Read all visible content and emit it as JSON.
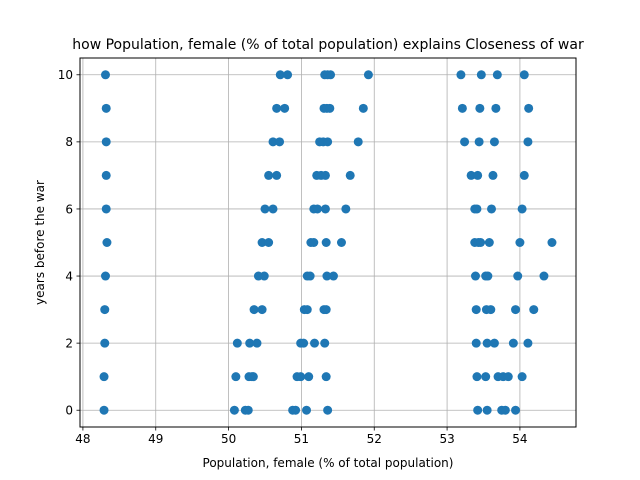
{
  "chart_data": {
    "type": "scatter",
    "title": "how Population, female (% of total population) explains Closeness of war",
    "xlabel": "Population, female (% of total population)",
    "ylabel": "years before the war",
    "xlim": [
      47.96,
      54.77
    ],
    "ylim": [
      -0.5,
      10.5
    ],
    "xticks": [
      48,
      49,
      50,
      51,
      52,
      53,
      54
    ],
    "yticks": [
      0,
      2,
      4,
      6,
      8,
      10
    ],
    "xtick_labels": [
      "48",
      "49",
      "50",
      "51",
      "52",
      "53",
      "54"
    ],
    "ytick_labels": [
      "0",
      "2",
      "4",
      "6",
      "8",
      "10"
    ],
    "grid": true,
    "marker_color": "#1f77b4",
    "points": [
      {
        "x": 48.31,
        "y": 10
      },
      {
        "x": 48.32,
        "y": 9
      },
      {
        "x": 48.32,
        "y": 8
      },
      {
        "x": 48.32,
        "y": 7
      },
      {
        "x": 48.32,
        "y": 6
      },
      {
        "x": 48.33,
        "y": 5
      },
      {
        "x": 48.31,
        "y": 4
      },
      {
        "x": 48.3,
        "y": 3
      },
      {
        "x": 48.3,
        "y": 2
      },
      {
        "x": 48.29,
        "y": 1
      },
      {
        "x": 48.29,
        "y": 0
      },
      {
        "x": 50.08,
        "y": 0
      },
      {
        "x": 50.23,
        "y": 0
      },
      {
        "x": 50.27,
        "y": 0
      },
      {
        "x": 50.1,
        "y": 1
      },
      {
        "x": 50.28,
        "y": 1
      },
      {
        "x": 50.32,
        "y": 1
      },
      {
        "x": 50.34,
        "y": 1
      },
      {
        "x": 50.12,
        "y": 2
      },
      {
        "x": 50.29,
        "y": 2
      },
      {
        "x": 50.39,
        "y": 2
      },
      {
        "x": 50.35,
        "y": 3
      },
      {
        "x": 50.46,
        "y": 3
      },
      {
        "x": 50.41,
        "y": 4
      },
      {
        "x": 50.49,
        "y": 4
      },
      {
        "x": 50.46,
        "y": 5
      },
      {
        "x": 50.55,
        "y": 5
      },
      {
        "x": 50.5,
        "y": 6
      },
      {
        "x": 50.61,
        "y": 6
      },
      {
        "x": 50.55,
        "y": 7
      },
      {
        "x": 50.66,
        "y": 7
      },
      {
        "x": 50.61,
        "y": 8
      },
      {
        "x": 50.7,
        "y": 8
      },
      {
        "x": 50.66,
        "y": 9
      },
      {
        "x": 50.77,
        "y": 9
      },
      {
        "x": 50.71,
        "y": 10
      },
      {
        "x": 50.81,
        "y": 10
      },
      {
        "x": 50.88,
        "y": 0
      },
      {
        "x": 50.92,
        "y": 0
      },
      {
        "x": 51.07,
        "y": 0
      },
      {
        "x": 51.36,
        "y": 0
      },
      {
        "x": 50.94,
        "y": 1
      },
      {
        "x": 50.99,
        "y": 1
      },
      {
        "x": 51.1,
        "y": 1
      },
      {
        "x": 51.34,
        "y": 1
      },
      {
        "x": 50.99,
        "y": 2
      },
      {
        "x": 51.03,
        "y": 2
      },
      {
        "x": 51.18,
        "y": 2
      },
      {
        "x": 51.32,
        "y": 2
      },
      {
        "x": 51.04,
        "y": 3
      },
      {
        "x": 51.08,
        "y": 3
      },
      {
        "x": 51.31,
        "y": 3
      },
      {
        "x": 51.34,
        "y": 3
      },
      {
        "x": 51.08,
        "y": 4
      },
      {
        "x": 51.12,
        "y": 4
      },
      {
        "x": 51.35,
        "y": 4
      },
      {
        "x": 51.44,
        "y": 4
      },
      {
        "x": 51.13,
        "y": 5
      },
      {
        "x": 51.17,
        "y": 5
      },
      {
        "x": 51.34,
        "y": 5
      },
      {
        "x": 51.55,
        "y": 5
      },
      {
        "x": 51.17,
        "y": 6
      },
      {
        "x": 51.22,
        "y": 6
      },
      {
        "x": 51.33,
        "y": 6
      },
      {
        "x": 51.61,
        "y": 6
      },
      {
        "x": 51.21,
        "y": 7
      },
      {
        "x": 51.27,
        "y": 7
      },
      {
        "x": 51.33,
        "y": 7
      },
      {
        "x": 51.67,
        "y": 7
      },
      {
        "x": 51.25,
        "y": 8
      },
      {
        "x": 51.3,
        "y": 8
      },
      {
        "x": 51.36,
        "y": 8
      },
      {
        "x": 51.78,
        "y": 8
      },
      {
        "x": 51.31,
        "y": 9
      },
      {
        "x": 51.35,
        "y": 9
      },
      {
        "x": 51.39,
        "y": 9
      },
      {
        "x": 51.85,
        "y": 9
      },
      {
        "x": 51.32,
        "y": 10
      },
      {
        "x": 51.36,
        "y": 10
      },
      {
        "x": 51.4,
        "y": 10
      },
      {
        "x": 51.92,
        "y": 10
      },
      {
        "x": 53.19,
        "y": 10
      },
      {
        "x": 53.47,
        "y": 10
      },
      {
        "x": 53.69,
        "y": 10
      },
      {
        "x": 54.06,
        "y": 10
      },
      {
        "x": 53.21,
        "y": 9
      },
      {
        "x": 53.45,
        "y": 9
      },
      {
        "x": 53.67,
        "y": 9
      },
      {
        "x": 54.12,
        "y": 9
      },
      {
        "x": 53.24,
        "y": 8
      },
      {
        "x": 53.44,
        "y": 8
      },
      {
        "x": 53.65,
        "y": 8
      },
      {
        "x": 54.11,
        "y": 8
      },
      {
        "x": 53.33,
        "y": 7
      },
      {
        "x": 53.42,
        "y": 7
      },
      {
        "x": 53.63,
        "y": 7
      },
      {
        "x": 54.06,
        "y": 7
      },
      {
        "x": 53.38,
        "y": 6
      },
      {
        "x": 53.41,
        "y": 6
      },
      {
        "x": 53.61,
        "y": 6
      },
      {
        "x": 54.03,
        "y": 6
      },
      {
        "x": 53.38,
        "y": 5
      },
      {
        "x": 53.43,
        "y": 5
      },
      {
        "x": 53.46,
        "y": 5
      },
      {
        "x": 53.58,
        "y": 5
      },
      {
        "x": 54.0,
        "y": 5
      },
      {
        "x": 54.44,
        "y": 5
      },
      {
        "x": 53.39,
        "y": 4
      },
      {
        "x": 53.53,
        "y": 4
      },
      {
        "x": 53.56,
        "y": 4
      },
      {
        "x": 53.97,
        "y": 4
      },
      {
        "x": 54.33,
        "y": 4
      },
      {
        "x": 53.4,
        "y": 3
      },
      {
        "x": 53.54,
        "y": 3
      },
      {
        "x": 53.6,
        "y": 3
      },
      {
        "x": 53.94,
        "y": 3
      },
      {
        "x": 54.19,
        "y": 3
      },
      {
        "x": 53.4,
        "y": 2
      },
      {
        "x": 53.55,
        "y": 2
      },
      {
        "x": 53.65,
        "y": 2
      },
      {
        "x": 53.91,
        "y": 2
      },
      {
        "x": 54.11,
        "y": 2
      },
      {
        "x": 53.41,
        "y": 1
      },
      {
        "x": 53.53,
        "y": 1
      },
      {
        "x": 53.7,
        "y": 1
      },
      {
        "x": 53.77,
        "y": 1
      },
      {
        "x": 53.84,
        "y": 1
      },
      {
        "x": 54.03,
        "y": 1
      },
      {
        "x": 53.42,
        "y": 0
      },
      {
        "x": 53.55,
        "y": 0
      },
      {
        "x": 53.75,
        "y": 0
      },
      {
        "x": 53.8,
        "y": 0
      },
      {
        "x": 53.94,
        "y": 0
      }
    ]
  }
}
